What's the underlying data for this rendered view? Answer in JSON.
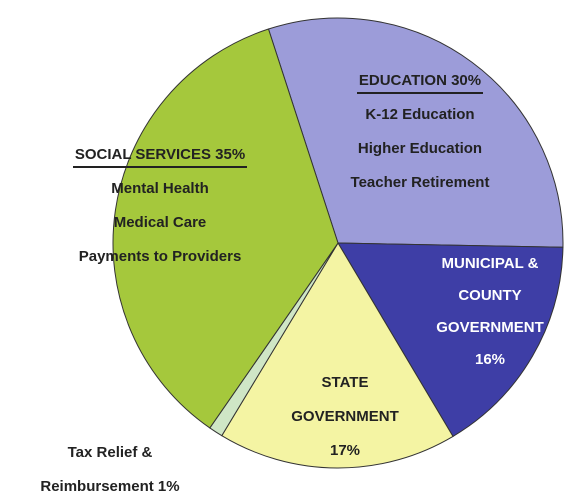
{
  "chart_data": {
    "type": "pie",
    "categories": [
      "EDUCATION",
      "MUNICIPAL & COUNTY GOVERNMENT",
      "STATE GOVERNMENT",
      "Tax Relief & Reimbursement",
      "SOCIAL SERVICES"
    ],
    "values": [
      30,
      16,
      17,
      1,
      35
    ],
    "value_labels": [
      "30%",
      "16%",
      "17%",
      "1%",
      "35%"
    ],
    "colors": [
      "#9c9cd9",
      "#3e3ea6",
      "#f4f4a3",
      "#cfe6c6",
      "#a5c83c"
    ],
    "details": [
      [
        "K-12 Education",
        "Higher Education",
        "Teacher Retirement"
      ],
      [],
      [],
      [],
      [
        "Mental Health",
        "Medical Care",
        "Payments to Providers"
      ]
    ]
  }
}
